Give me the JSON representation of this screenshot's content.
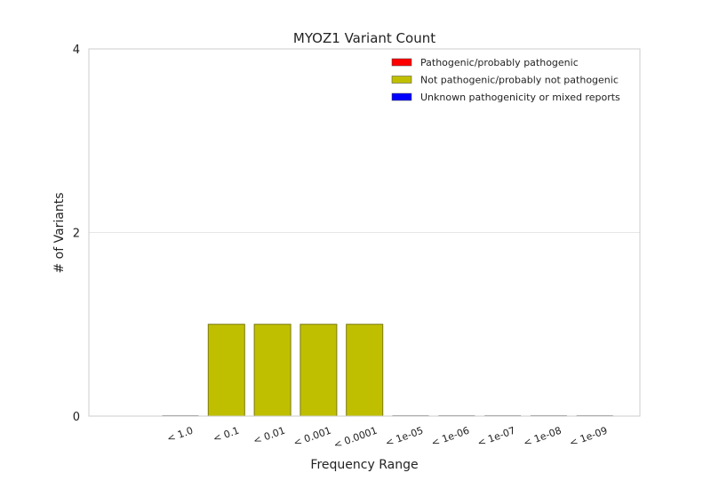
{
  "chart_data": {
    "type": "bar",
    "title": "MYOZ1 Variant Count",
    "xlabel": "Frequency Range",
    "ylabel": "# of Variants",
    "ylim": [
      0,
      4
    ],
    "yticks": [
      0,
      2,
      4
    ],
    "categories": [
      "< 1.0",
      "< 0.1",
      "< 0.01",
      "< 0.001",
      "< 0.0001",
      "< 1e-05",
      "< 1e-06",
      "< 1e-07",
      "< 1e-08",
      "< 1e-09"
    ],
    "series": [
      {
        "name": "Pathogenic/probably pathogenic",
        "color": "#ff0000",
        "values": [
          0,
          0,
          0,
          0,
          0,
          0,
          0,
          0,
          0,
          0
        ]
      },
      {
        "name": "Not pathogenic/probably not pathogenic",
        "color": "#bfbf00",
        "values": [
          0,
          1,
          1,
          1,
          1,
          0,
          0,
          0,
          0,
          0
        ]
      },
      {
        "name": "Unknown pathogenicity or mixed reports",
        "color": "#0000ff",
        "values": [
          0,
          0,
          0,
          0,
          0,
          0,
          0,
          0,
          0,
          0
        ]
      }
    ],
    "grid": "horizontal",
    "legend": "top-right"
  }
}
